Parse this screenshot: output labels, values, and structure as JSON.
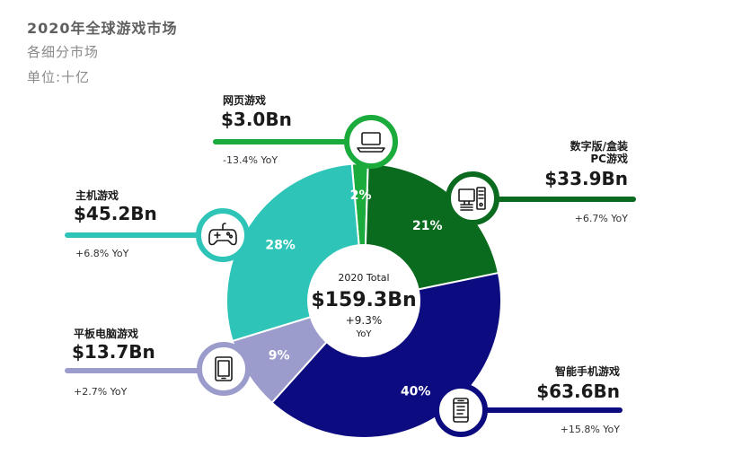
{
  "header": {
    "title": "2020年全球游戏市场",
    "subtitle": "各细分市场",
    "unit": "单位:十亿"
  },
  "center": {
    "label": "2020 Total",
    "value": "$159.3Bn",
    "growth": "+9.3%",
    "growth_unit": "YoY"
  },
  "colors": {
    "browser": "#1aab3c",
    "pc": "#0a6b1e",
    "mobile": "#0c0c80",
    "tablet": "#9c9ccc",
    "console": "#2ec5b8"
  },
  "chart_data": {
    "type": "pie",
    "title": "2020年全球游戏市场",
    "subtitle": "各细分市场",
    "unit": "单位:十亿",
    "total": 159.3,
    "slices": [
      {
        "key": "browser",
        "name": "网页游戏",
        "value": 3.0,
        "display": "$3.0Bn",
        "pct_label": "2%",
        "yoy": "-13.4% YoY",
        "icon": "laptop-icon"
      },
      {
        "key": "pc",
        "name": "数字版/盒装\nPC游戏",
        "value": 33.9,
        "display": "$33.9Bn",
        "pct_label": "21%",
        "yoy": "+6.7% YoY",
        "icon": "desktop-pc-icon"
      },
      {
        "key": "mobile",
        "name": "智能手机游戏",
        "value": 63.6,
        "display": "$63.6Bn",
        "pct_label": "40%",
        "yoy": "+15.8% YoY",
        "icon": "smartphone-icon"
      },
      {
        "key": "tablet",
        "name": "平板电脑游戏",
        "value": 13.7,
        "display": "$13.7Bn",
        "pct_label": "9%",
        "yoy": "+2.7% YoY",
        "icon": "tablet-icon"
      },
      {
        "key": "console",
        "name": "主机游戏",
        "value": 45.2,
        "display": "$45.2Bn",
        "pct_label": "28%",
        "yoy": "+6.8% YoY",
        "icon": "gamepad-icon"
      }
    ]
  }
}
